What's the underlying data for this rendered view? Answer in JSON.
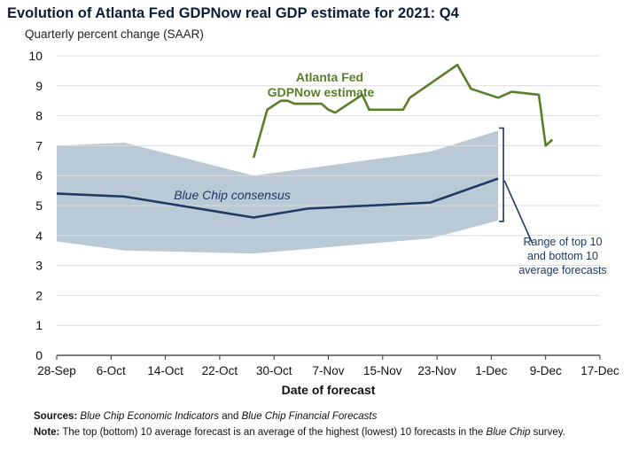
{
  "chart_data": {
    "type": "line",
    "title": "Evolution of Atlanta Fed GDPNow real GDP estimate for 2021: Q4",
    "subtitle": "Quarterly percent change (SAAR)",
    "xlabel": "Date of forecast",
    "ylabel": "",
    "ylim": [
      0,
      10
    ],
    "yticks": [
      "0",
      "1",
      "2",
      "3",
      "4",
      "5",
      "6",
      "7",
      "8",
      "9",
      "10"
    ],
    "xticks": [
      "28-Sep",
      "6-Oct",
      "14-Oct",
      "22-Oct",
      "30-Oct",
      "7-Nov",
      "15-Nov",
      "23-Nov",
      "1-Dec",
      "9-Dec",
      "17-Dec"
    ],
    "x_range_days": [
      0,
      80
    ],
    "gdpnow": {
      "label_line1": "Atlanta Fed",
      "label_line2": "GDPNow estimate",
      "color": "#5a7f2b",
      "x": [
        29,
        31,
        33,
        34,
        35,
        39,
        40,
        41,
        45,
        46,
        51,
        52,
        59,
        61,
        65,
        67,
        71,
        72,
        73
      ],
      "values": [
        6.6,
        8.2,
        8.5,
        8.5,
        8.4,
        8.4,
        8.2,
        8.1,
        8.7,
        8.2,
        8.2,
        8.6,
        9.7,
        8.9,
        8.6,
        8.8,
        8.7,
        7.0,
        7.2
      ]
    },
    "blue_chip": {
      "label": "Blue Chip consensus",
      "color": "#1f3864",
      "x": [
        0,
        10,
        29,
        37,
        46,
        55,
        65
      ],
      "values": [
        5.4,
        5.3,
        4.6,
        4.9,
        5.0,
        5.1,
        5.9
      ]
    },
    "range": {
      "label_lines": [
        "Range of top 10",
        "and bottom 10",
        "average forecasts"
      ],
      "color": "#b9c9d5",
      "label_color": "#1f3864",
      "x": [
        0,
        10,
        29,
        55,
        65
      ],
      "top": [
        7.0,
        7.1,
        6.0,
        6.8,
        7.5
      ],
      "bottom": [
        3.8,
        3.5,
        3.4,
        3.9,
        4.5
      ]
    }
  },
  "footer": {
    "sources_label": "Sources:",
    "sources_italic1": "Blue Chip Economic Indicators",
    "sources_and": " and ",
    "sources_italic2": "Blue Chip Financial Forecasts",
    "note_label": "Note:",
    "note_text": " The top (bottom) 10 average forecast is an average of the highest (lowest) 10 forecasts in the ",
    "note_italic": "Blue Chip",
    "note_end": " survey."
  }
}
